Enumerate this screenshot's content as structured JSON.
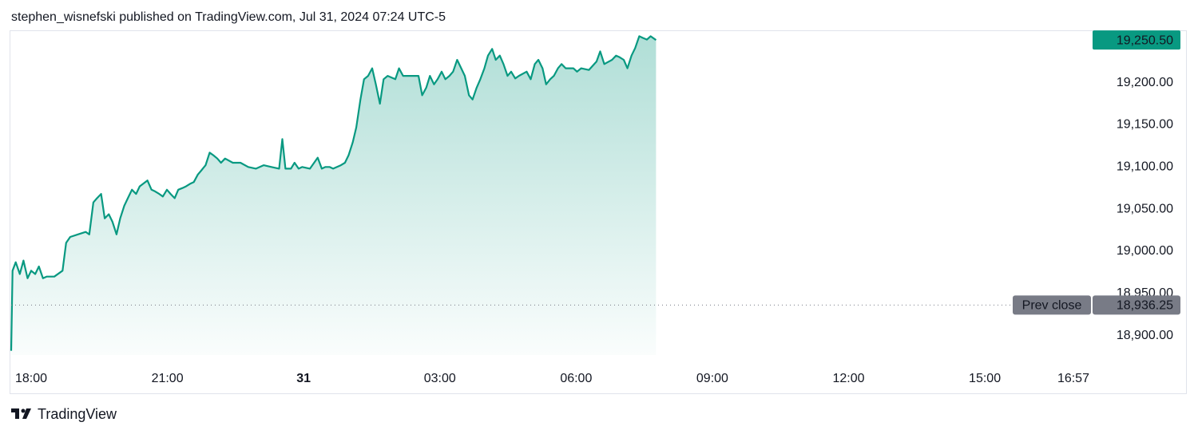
{
  "header": {
    "byline": "stephen_wisnefski published on TradingView.com, Jul 31, 2024 07:24 UTC-5"
  },
  "footer": {
    "brand": "TradingView"
  },
  "chart_data": {
    "type": "area",
    "color": "#089981",
    "x": [
      17.56,
      17.59,
      17.66,
      17.75,
      17.83,
      17.92,
      18.0,
      18.09,
      18.17,
      18.26,
      18.34,
      18.51,
      18.69,
      18.77,
      18.86,
      19.03,
      19.2,
      19.28,
      19.37,
      19.45,
      19.54,
      19.62,
      19.71,
      19.79,
      19.88,
      19.96,
      20.05,
      20.13,
      20.22,
      20.31,
      20.39,
      20.56,
      20.65,
      20.73,
      20.82,
      20.9,
      20.99,
      21.07,
      21.16,
      21.24,
      21.33,
      21.41,
      21.5,
      21.58,
      21.67,
      21.75,
      21.84,
      21.93,
      22.01,
      22.1,
      22.18,
      22.27,
      22.44,
      22.61,
      22.78,
      22.95,
      23.12,
      23.29,
      23.46,
      23.53,
      23.6,
      23.72,
      23.8,
      23.89,
      23.97,
      24.14,
      24.23,
      24.31,
      24.4,
      24.48,
      24.57,
      24.65,
      24.82,
      24.91,
      24.99,
      25.08,
      25.16,
      25.25,
      25.33,
      25.42,
      25.51,
      25.59,
      25.68,
      25.76,
      25.85,
      26.02,
      26.1,
      26.19,
      26.36,
      26.53,
      26.61,
      26.7,
      26.78,
      26.87,
      26.95,
      27.04,
      27.12,
      27.21,
      27.29,
      27.38,
      27.47,
      27.55,
      27.64,
      27.72,
      27.81,
      27.89,
      27.98,
      28.06,
      28.15,
      28.23,
      28.32,
      28.4,
      28.49,
      28.57,
      28.66,
      28.74,
      28.91,
      29.0,
      29.09,
      29.17,
      29.26,
      29.34,
      29.43,
      29.51,
      29.6,
      29.68,
      29.77,
      29.94,
      30.02,
      30.11,
      30.28,
      30.45,
      30.53,
      30.62,
      30.79,
      30.88,
      30.96,
      31.05,
      31.13,
      31.22,
      31.3,
      31.39,
      31.47,
      31.56,
      31.64,
      31.76
    ],
    "values": [
      18882,
      18977,
      18987,
      18973,
      18989,
      18968,
      18977,
      18973,
      18982,
      18968,
      18970,
      18970,
      18977,
      19010,
      19017,
      19020,
      19023,
      19020,
      19058,
      19063,
      19068,
      19039,
      19044,
      19035,
      19020,
      19039,
      19054,
      19063,
      19073,
      19068,
      19077,
      19084,
      19073,
      19071,
      19068,
      19065,
      19073,
      19068,
      19063,
      19073,
      19075,
      19077,
      19080,
      19082,
      19091,
      19096,
      19102,
      19117,
      19114,
      19110,
      19105,
      19110,
      19105,
      19105,
      19100,
      19098,
      19102,
      19100,
      19098,
      19133,
      19098,
      19098,
      19105,
      19098,
      19100,
      19098,
      19105,
      19111,
      19098,
      19100,
      19100,
      19098,
      19102,
      19105,
      19114,
      19129,
      19147,
      19180,
      19204,
      19208,
      19217,
      19198,
      19175,
      19204,
      19208,
      19204,
      19217,
      19208,
      19208,
      19208,
      19185,
      19194,
      19208,
      19198,
      19204,
      19213,
      19204,
      19208,
      19213,
      19227,
      19217,
      19208,
      19185,
      19180,
      19194,
      19204,
      19217,
      19232,
      19240,
      19227,
      19232,
      19222,
      19208,
      19213,
      19205,
      19208,
      19213,
      19204,
      19222,
      19227,
      19217,
      19198,
      19204,
      19208,
      19217,
      19222,
      19217,
      19217,
      19213,
      19217,
      19215,
      19225,
      19237,
      19222,
      19227,
      19232,
      19230,
      19227,
      19217,
      19232,
      19241,
      19255,
      19253,
      19251,
      19255,
      19250.5
    ],
    "last_price_label": "19,250.50",
    "prev_close": {
      "name": "Prev close",
      "value": 18936.25,
      "label": "18,936.25"
    },
    "xlim": [
      17.56,
      41.32
    ],
    "xticks": [
      {
        "value": 18,
        "label": "18:00"
      },
      {
        "value": 21,
        "label": "21:00"
      },
      {
        "value": 24,
        "label": "31"
      },
      {
        "value": 27,
        "label": "03:00"
      },
      {
        "value": 30,
        "label": "06:00"
      },
      {
        "value": 33,
        "label": "09:00"
      },
      {
        "value": 36,
        "label": "12:00"
      },
      {
        "value": 39,
        "label": "15:00"
      },
      {
        "value": 40.95,
        "label": "16:57"
      }
    ],
    "ylim": [
      18877,
      19262
    ],
    "yticks": [
      {
        "value": 18900,
        "label": "18,900.00"
      },
      {
        "value": 18950,
        "label": "18,950.00"
      },
      {
        "value": 19000,
        "label": "19,000.00"
      },
      {
        "value": 19050,
        "label": "19,050.00"
      },
      {
        "value": 19100,
        "label": "19,100.00"
      },
      {
        "value": 19150,
        "label": "19,150.00"
      },
      {
        "value": 19200,
        "label": "19,200.00"
      }
    ]
  }
}
